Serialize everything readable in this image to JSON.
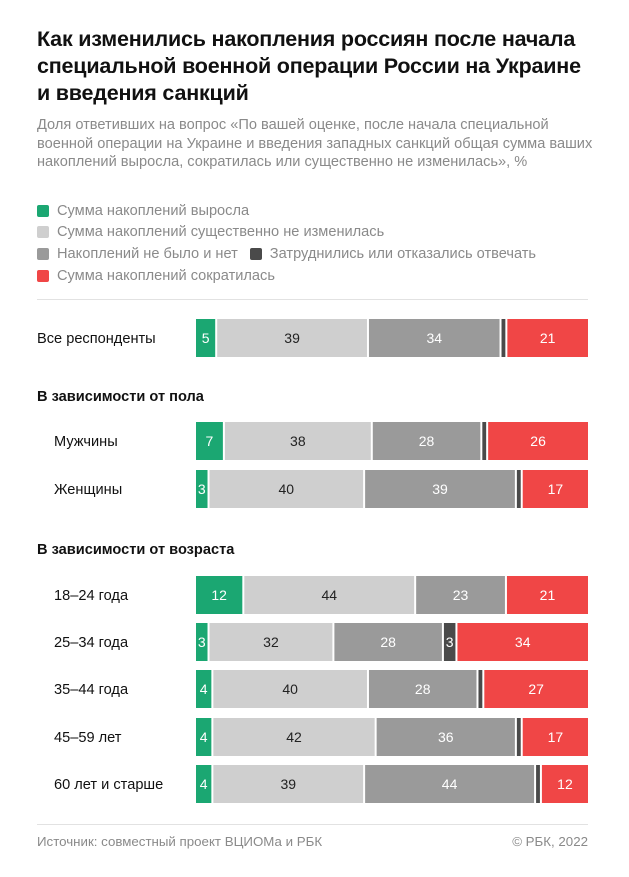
{
  "title": "Как изменились накопления россиян после начала специальной военной операции России на Украине и введения санкций",
  "subtitle": "Доля ответивших на вопрос «По вашей оценке, после начала специальной военной операции на Украине и введения западных санкций общая сумма ваших накоплений выросла, сократилась или существенно не изменилась», %",
  "footer": {
    "source": "Источник: совместный проект ВЦИОМа и РБК",
    "copyright": "© РБК, 2022"
  },
  "chart_data": {
    "type": "bar",
    "orientation": "horizontal",
    "stacked": true,
    "unit": "%",
    "colors": {
      "increased": "#1ba772",
      "unchanged": "#cfcfcf",
      "no_savings": "#9a9a9a",
      "hard_to_say": "#4a4a4a",
      "decreased": "#f04646"
    },
    "series": [
      {
        "key": "increased",
        "name": "Сумма накоплений выросла"
      },
      {
        "key": "unchanged",
        "name": "Сумма накоплений существенно не изменилась"
      },
      {
        "key": "no_savings",
        "name": "Накоплений не было и нет"
      },
      {
        "key": "hard_to_say",
        "name": "Затруднились или отказались отвечать"
      },
      {
        "key": "decreased",
        "name": "Сумма накоплений сократилась"
      }
    ],
    "groups": [
      {
        "heading": "",
        "rows": [
          {
            "label": "Все респонденты",
            "values": [
              5,
              39,
              34,
              1,
              21
            ],
            "shown": [
              "5",
              "39",
              "34",
              "",
              "21"
            ]
          }
        ]
      },
      {
        "heading": "В зависимости от пола",
        "rows": [
          {
            "label": "Мужчины",
            "values": [
              7,
              38,
              28,
              1,
              26
            ],
            "shown": [
              "7",
              "38",
              "28",
              "",
              "26"
            ]
          },
          {
            "label": "Женщины",
            "values": [
              3,
              40,
              39,
              1,
              17
            ],
            "shown": [
              "3",
              "40",
              "39",
              "",
              "17"
            ]
          }
        ]
      },
      {
        "heading": "В зависимости от возраста",
        "rows": [
          {
            "label": "18–24 года",
            "values": [
              12,
              44,
              23,
              0,
              21
            ],
            "shown": [
              "12",
              "44",
              "23",
              "",
              "21"
            ]
          },
          {
            "label": "25–34 года",
            "values": [
              3,
              32,
              28,
              3,
              34
            ],
            "shown": [
              "3",
              "32",
              "28",
              "3",
              "34"
            ]
          },
          {
            "label": "35–44 года",
            "values": [
              4,
              40,
              28,
              1,
              27
            ],
            "shown": [
              "4",
              "40",
              "28",
              "",
              "27"
            ]
          },
          {
            "label": "45–59 лет",
            "values": [
              4,
              42,
              36,
              1,
              17
            ],
            "shown": [
              "4",
              "42",
              "36",
              "",
              "17"
            ]
          },
          {
            "label": "60 лет и старше",
            "values": [
              4,
              39,
              44,
              1,
              12
            ],
            "shown": [
              "4",
              "39",
              "44",
              "",
              "12"
            ]
          }
        ]
      }
    ]
  }
}
